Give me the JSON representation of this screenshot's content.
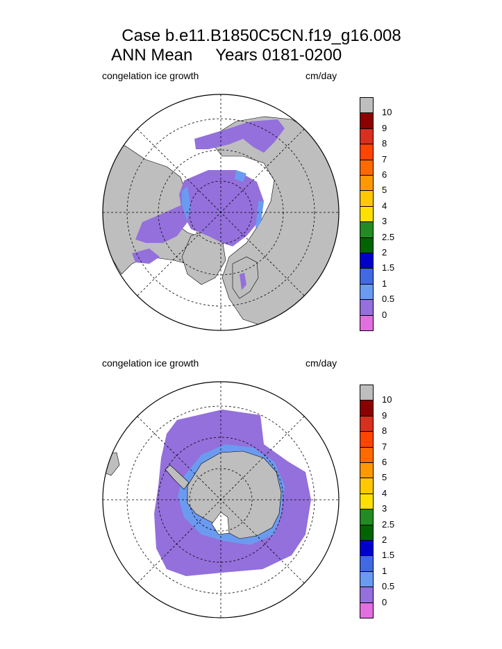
{
  "title": {
    "line1": "Case b.e11.B1850C5CN.f19_g16.008",
    "line2": "ANN Mean     Years 0181-0200"
  },
  "panels": [
    {
      "id": "north",
      "left_label": "congelation ice growth",
      "right_label": "cm/day",
      "hemisphere": "Arctic (north polar stereographic)"
    },
    {
      "id": "south",
      "left_label": "congelation ice growth",
      "right_label": "cm/day",
      "hemisphere": "Antarctic (south polar stereographic)"
    }
  ],
  "colorbar": {
    "labels": [
      "10",
      "9",
      "8",
      "7",
      "6",
      "5",
      "4",
      "3",
      "2.5",
      "2",
      "1.5",
      "1",
      "0.5",
      "0"
    ],
    "colors": [
      "#bebebe",
      "#8b0000",
      "#d7301f",
      "#ff4500",
      "#ff6a00",
      "#ff9900",
      "#ffc800",
      "#ffe100",
      "#228b22",
      "#006400",
      "#0000cd",
      "#4169e1",
      "#6b9bf0",
      "#9370db",
      "#e070e0"
    ]
  },
  "colors": {
    "land": "#bebebe",
    "ice_low": "#9370db",
    "ice_mid": "#6b9bf0",
    "ice_high": "#4169e1"
  }
}
